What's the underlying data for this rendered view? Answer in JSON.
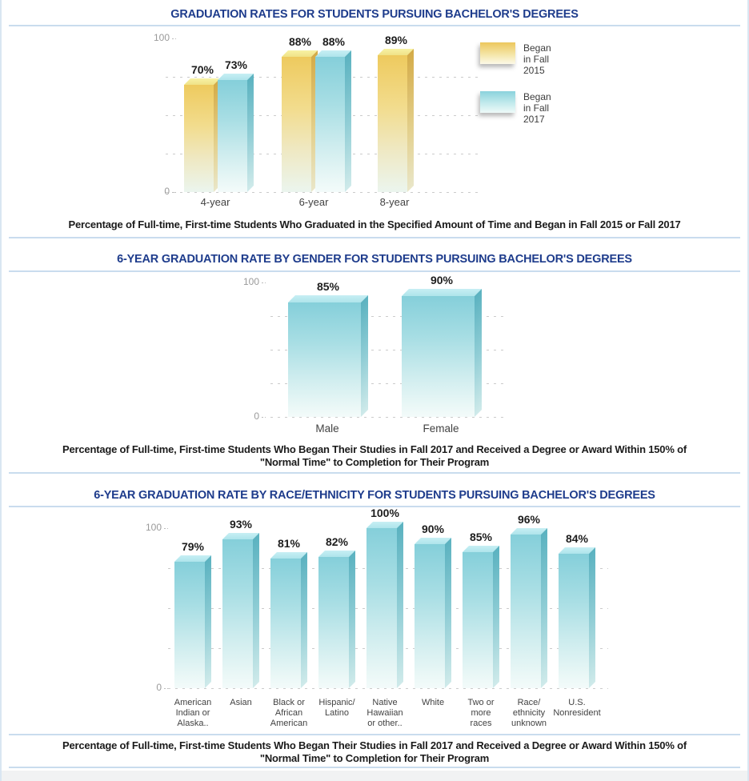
{
  "page": {
    "title_color": "#1e3c8c",
    "divider_color": "#c9dcee",
    "series_colors": {
      "fall2015": "#ECC65B",
      "fall2017": "#85CFDA"
    }
  },
  "sections": [
    {
      "title": "GRADUATION RATES FOR STUDENTS PURSUING BACHELOR'S DEGREES",
      "caption_lines": [
        "Percentage of Full-time, First-time Students Who Graduated in the Specified Amount of Time and Began in Fall 2015 or Fall 2017"
      ]
    },
    {
      "title": "6-YEAR GRADUATION RATE BY GENDER FOR STUDENTS PURSUING BACHELOR'S DEGREES",
      "caption_lines": [
        "Percentage of Full-time, First-time Students Who Began Their Studies in Fall 2017 and Received a Degree or Award Within 150% of",
        "\"Normal Time\" to Completion for Their Program"
      ]
    },
    {
      "title": "6-YEAR GRADUATION RATE BY RACE/ETHNICITY FOR STUDENTS PURSUING BACHELOR'S DEGREES",
      "caption_lines": [
        "Percentage of Full-time, First-time Students Who Began Their Studies in Fall 2017 and Received a Degree or Award Within 150% of",
        "\"Normal Time\" to Completion for Their Program"
      ]
    }
  ],
  "chart_data": [
    {
      "type": "bar",
      "title": "GRADUATION RATES FOR STUDENTS PURSUING BACHELOR'S DEGREES",
      "categories": [
        "4-year",
        "6-year",
        "8-year"
      ],
      "series": [
        {
          "name": "Began in Fall 2015",
          "legend_lines": [
            "Began",
            "in Fall",
            "2015"
          ],
          "color": "#ECC65B",
          "color_class": "yellow",
          "values": [
            70,
            88,
            89
          ],
          "value_labels": [
            "70%",
            "88%",
            "89%"
          ]
        },
        {
          "name": "Began in Fall 2017",
          "legend_lines": [
            "Began",
            "in Fall",
            "2017"
          ],
          "color": "#85CFDA",
          "color_class": "cyan",
          "values": [
            73,
            88,
            null
          ],
          "value_labels": [
            "73%",
            "88%",
            null
          ]
        }
      ],
      "xlabel": "",
      "ylabel": "",
      "ylim": [
        0,
        100
      ],
      "ytick_labels": [
        "0",
        "100"
      ],
      "grid": true,
      "grid_levels": [
        0,
        25,
        50,
        75
      ],
      "legend_position": "right"
    },
    {
      "type": "bar",
      "title": "6-YEAR GRADUATION RATE BY GENDER FOR STUDENTS PURSUING BACHELOR'S DEGREES",
      "categories": [
        "Male",
        "Female"
      ],
      "series": [
        {
          "name": "6-year graduation rate",
          "color": "#85CFDA",
          "color_class": "cyan",
          "values": [
            85,
            90
          ],
          "value_labels": [
            "85%",
            "90%"
          ]
        }
      ],
      "xlabel": "",
      "ylabel": "",
      "ylim": [
        0,
        100
      ],
      "ytick_labels": [
        "0",
        "100"
      ],
      "grid": true,
      "grid_levels": [
        0,
        25,
        50,
        75
      ],
      "legend_position": "none"
    },
    {
      "type": "bar",
      "title": "6-YEAR GRADUATION RATE BY RACE/ETHNICITY FOR STUDENTS PURSUING BACHELOR'S DEGREES",
      "categories": [
        "American Indian or Alaska..",
        "Asian",
        "Black or African American",
        "Hispanic/ Latino",
        "Native Hawaiian or other..",
        "White",
        "Two or more races",
        "Race/ ethnicity unknown",
        "U.S. Nonresident"
      ],
      "category_label_lines": [
        [
          "American",
          "Indian or",
          "Alaska.."
        ],
        [
          "Asian"
        ],
        [
          "Black or",
          "African",
          "American"
        ],
        [
          "Hispanic/",
          "Latino"
        ],
        [
          "Native",
          "Hawaiian",
          "or other.."
        ],
        [
          "White"
        ],
        [
          "Two or",
          "more",
          "races"
        ],
        [
          "Race/",
          "ethnicity",
          "unknown"
        ],
        [
          "U.S.",
          "Nonresident"
        ]
      ],
      "series": [
        {
          "name": "6-year graduation rate",
          "color": "#85CFDA",
          "color_class": "cyan",
          "values": [
            79,
            93,
            81,
            82,
            100,
            90,
            85,
            96,
            84
          ],
          "value_labels": [
            "79%",
            "93%",
            "81%",
            "82%",
            "100%",
            "90%",
            "85%",
            "96%",
            "84%"
          ]
        }
      ],
      "xlabel": "",
      "ylabel": "",
      "ylim": [
        0,
        100
      ],
      "ytick_labels": [
        "0",
        "100"
      ],
      "grid": true,
      "grid_levels": [
        0,
        25,
        50,
        75
      ],
      "legend_position": "none"
    }
  ]
}
